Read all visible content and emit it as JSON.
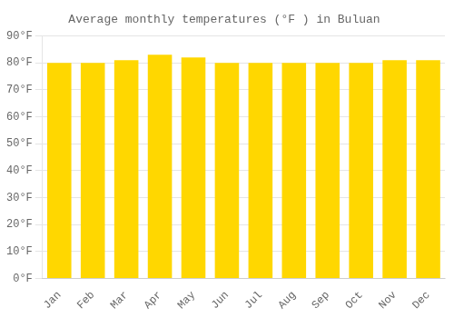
{
  "chart_data": {
    "type": "bar",
    "title": "Average monthly temperatures (°F ) in Buluan",
    "categories": [
      "Jan",
      "Feb",
      "Mar",
      "Apr",
      "May",
      "Jun",
      "Jul",
      "Aug",
      "Sep",
      "Oct",
      "Nov",
      "Dec"
    ],
    "values": [
      80,
      80,
      81,
      83,
      82,
      80,
      80,
      80,
      80,
      80,
      81,
      81
    ],
    "color": "#FFD700",
    "ylim": [
      0,
      90
    ],
    "yticks": [
      {
        "value": 0,
        "label": "0°F"
      },
      {
        "value": 10,
        "label": "10°F"
      },
      {
        "value": 20,
        "label": "20°F"
      },
      {
        "value": 30,
        "label": "30°F"
      },
      {
        "value": 40,
        "label": "40°F"
      },
      {
        "value": 50,
        "label": "50°F"
      },
      {
        "value": 60,
        "label": "60°F"
      },
      {
        "value": 70,
        "label": "70°F"
      },
      {
        "value": 80,
        "label": "80°F"
      },
      {
        "value": 90,
        "label": "90°F"
      }
    ],
    "grid": true
  }
}
